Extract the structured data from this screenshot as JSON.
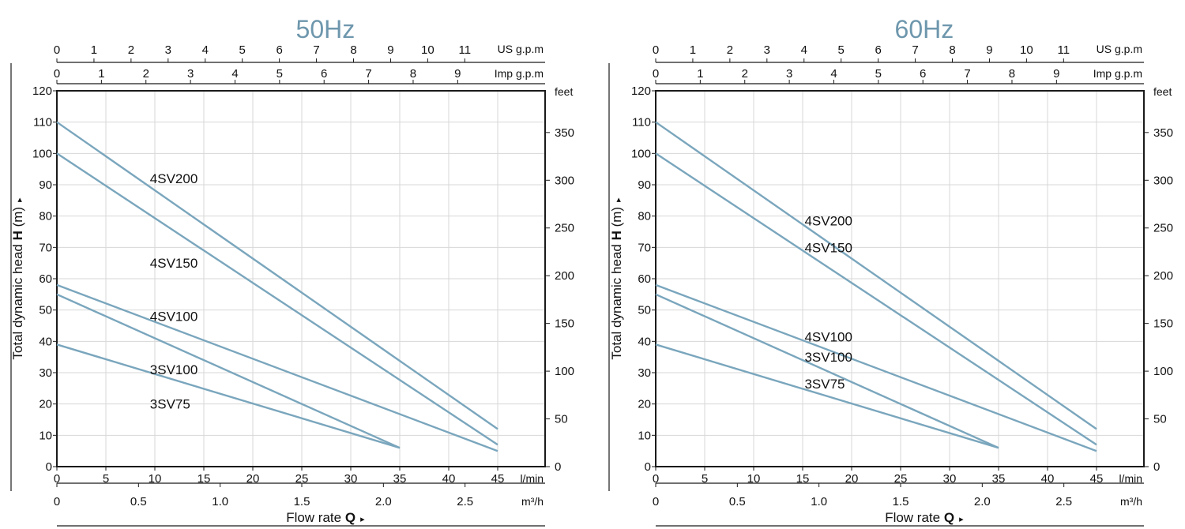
{
  "colors": {
    "title": "#6e97ad",
    "curve": "#7aa6bd",
    "frame": "#1a1a1a",
    "grid": "#d7d7d7"
  },
  "chart_data": [
    {
      "type": "line",
      "title": "50Hz",
      "xlabel": "Flow rate Q",
      "ylabel": "Total dynamic head H (m)",
      "x_unit": "l/min",
      "xlim": [
        0,
        50
      ],
      "ylim": [
        0,
        120
      ],
      "x_ticks": [
        "0",
        "5",
        "10",
        "15",
        "20",
        "25",
        "30",
        "35",
        "40",
        "45"
      ],
      "y_ticks": [
        "0",
        "10",
        "20",
        "30",
        "40",
        "50",
        "60",
        "70",
        "80",
        "90",
        "100",
        "110",
        "120"
      ],
      "secondary_axes": {
        "us_gpm": {
          "unit": "US g.p.m",
          "ticks": [
            "0",
            "1",
            "2",
            "3",
            "4",
            "5",
            "6",
            "7",
            "8",
            "9",
            "10",
            "11"
          ]
        },
        "imp_gpm": {
          "unit": "Imp g.p.m",
          "ticks": [
            "0",
            "1",
            "2",
            "3",
            "4",
            "5",
            "6",
            "7",
            "8",
            "9"
          ]
        },
        "m3h": {
          "unit": "m³/h",
          "ticks": [
            "0",
            "0.5",
            "1.0",
            "1.5",
            "2.0",
            "2.5"
          ]
        },
        "feet": {
          "unit": "feet",
          "ticks": [
            "0",
            "50",
            "100",
            "150",
            "200",
            "250",
            "300",
            "350"
          ]
        }
      },
      "series": [
        {
          "name": "4SV200",
          "x": [
            0,
            45
          ],
          "y": [
            110,
            12
          ]
        },
        {
          "name": "4SV150",
          "x": [
            0,
            45
          ],
          "y": [
            100,
            7
          ]
        },
        {
          "name": "4SV100",
          "x": [
            0,
            45
          ],
          "y": [
            58,
            5
          ]
        },
        {
          "name": "3SV100",
          "x": [
            0,
            35
          ],
          "y": [
            55,
            6
          ]
        },
        {
          "name": "3SV75",
          "x": [
            0,
            35
          ],
          "y": [
            39,
            6
          ]
        }
      ],
      "labels": [
        {
          "text": "4SV200",
          "x": 9.5,
          "y": 92
        },
        {
          "text": "4SV150",
          "x": 9.5,
          "y": 65
        },
        {
          "text": "4SV100",
          "x": 9.5,
          "y": 48
        },
        {
          "text": "3SV100",
          "x": 9.5,
          "y": 31
        },
        {
          "text": "3SV75",
          "x": 9.5,
          "y": 20
        }
      ],
      "grid": true
    },
    {
      "type": "line",
      "title": "60Hz",
      "xlabel": "Flow rate Q",
      "ylabel": "Total dynamic head H (m)",
      "x_unit": "l/min",
      "xlim": [
        0,
        50
      ],
      "ylim": [
        0,
        120
      ],
      "x_ticks": [
        "0",
        "5",
        "10",
        "15",
        "20",
        "25",
        "30",
        "35",
        "40",
        "45"
      ],
      "y_ticks": [
        "0",
        "10",
        "20",
        "30",
        "40",
        "50",
        "60",
        "70",
        "80",
        "90",
        "100",
        "110",
        "120"
      ],
      "secondary_axes": {
        "us_gpm": {
          "unit": "US g.p.m",
          "ticks": [
            "0",
            "1",
            "2",
            "3",
            "4",
            "5",
            "6",
            "7",
            "8",
            "9",
            "10",
            "11"
          ]
        },
        "imp_gpm": {
          "unit": "Imp g.p.m",
          "ticks": [
            "0",
            "1",
            "2",
            "3",
            "4",
            "5",
            "6",
            "7",
            "8",
            "9"
          ]
        },
        "m3h": {
          "unit": "m³/h",
          "ticks": [
            "0",
            "0.5",
            "1.0",
            "1.5",
            "2.0",
            "2.5"
          ]
        },
        "feet": {
          "unit": "feet",
          "ticks": [
            "0",
            "50",
            "100",
            "150",
            "200",
            "250",
            "300",
            "350"
          ]
        }
      },
      "series": [
        {
          "name": "4SV200",
          "x": [
            0,
            45
          ],
          "y": [
            110,
            12
          ]
        },
        {
          "name": "4SV150",
          "x": [
            0,
            45
          ],
          "y": [
            100,
            7
          ]
        },
        {
          "name": "4SV100",
          "x": [
            0,
            45
          ],
          "y": [
            58,
            5
          ]
        },
        {
          "name": "3SV100",
          "x": [
            0,
            35
          ],
          "y": [
            55,
            6
          ]
        },
        {
          "name": "3SV75",
          "x": [
            0,
            35
          ],
          "y": [
            39,
            6
          ]
        }
      ],
      "labels": [
        {
          "text": "4SV200",
          "x": 15.2,
          "y": 78.5
        },
        {
          "text": "4SV150",
          "x": 15.2,
          "y": 70
        },
        {
          "text": "4SV100",
          "x": 15.2,
          "y": 41.5
        },
        {
          "text": "3SV100",
          "x": 15.2,
          "y": 35
        },
        {
          "text": "3SV75",
          "x": 15.2,
          "y": 26.5
        }
      ],
      "grid": true
    }
  ]
}
